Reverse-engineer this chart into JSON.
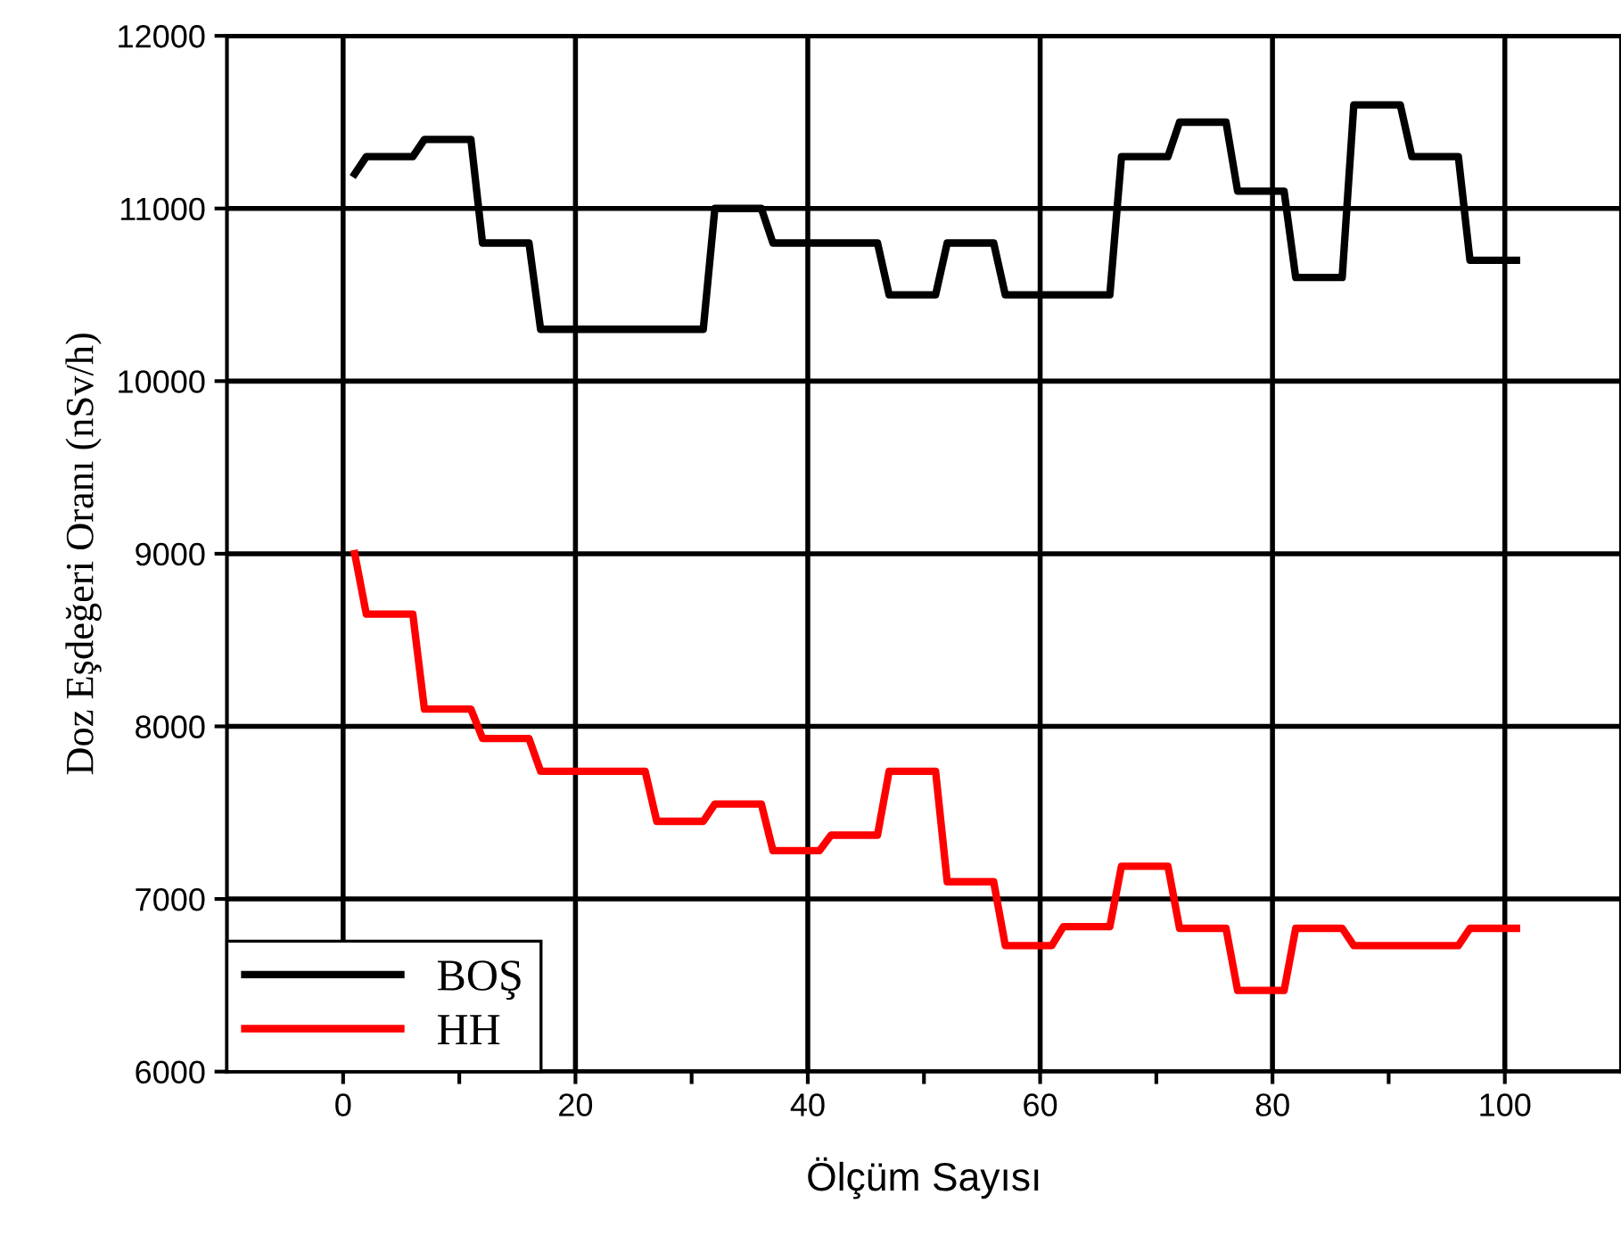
{
  "chart_data": {
    "type": "line",
    "xlabel": "Ölçüm Sayısı",
    "ylabel": "Doz Eşdeğeri Oranı (nSv/h)",
    "series": [
      {
        "name": "BOŞ",
        "color": "#000000",
        "x": [
          1,
          2,
          6,
          7,
          11,
          12,
          16,
          17,
          31,
          32,
          36,
          37,
          46,
          47,
          51,
          52,
          56,
          57,
          66,
          67,
          71,
          72,
          76,
          77,
          81,
          82,
          86,
          87,
          91,
          92,
          96,
          97,
          101
        ],
        "values": [
          11200,
          11300,
          11300,
          11400,
          11400,
          10800,
          10800,
          10300,
          10300,
          11000,
          11000,
          10800,
          10800,
          10500,
          10500,
          10800,
          10800,
          10500,
          10500,
          11300,
          11300,
          11500,
          11500,
          11100,
          11100,
          10600,
          10600,
          11600,
          11600,
          11300,
          11300,
          10700,
          10700
        ]
      },
      {
        "name": "HH",
        "color": "#ff0000",
        "x": [
          1,
          2,
          6,
          7,
          11,
          12,
          16,
          17,
          26,
          27,
          31,
          32,
          36,
          37,
          41,
          42,
          46,
          47,
          51,
          52,
          56,
          57,
          61,
          62,
          66,
          67,
          71,
          72,
          76,
          77,
          81,
          82,
          86,
          87,
          96,
          97,
          101
        ],
        "values": [
          9000,
          8650,
          8650,
          8100,
          8100,
          7930,
          7930,
          7740,
          7740,
          7450,
          7450,
          7550,
          7550,
          7280,
          7280,
          7370,
          7370,
          7740,
          7740,
          7100,
          7100,
          6730,
          6730,
          6840,
          6840,
          7190,
          7190,
          6830,
          6830,
          6470,
          6470,
          6830,
          6830,
          6730,
          6730,
          6830,
          6830
        ]
      }
    ],
    "xlim": [
      -10,
      110
    ],
    "xticks": [
      0,
      {
        "value": 10,
        "label": null
      },
      20,
      {
        "value": 30,
        "label": null
      },
      40,
      {
        "value": 50,
        "label": null
      },
      60,
      {
        "value": 70,
        "label": null
      },
      80,
      {
        "value": 90,
        "label": null
      },
      100
    ],
    "ylim": [
      6000,
      12000
    ],
    "yticks": [
      6000,
      7000,
      8000,
      9000,
      10000,
      11000,
      12000
    ],
    "grid": true,
    "legend": "bottom left",
    "line_style": "solid",
    "marker": "none"
  }
}
